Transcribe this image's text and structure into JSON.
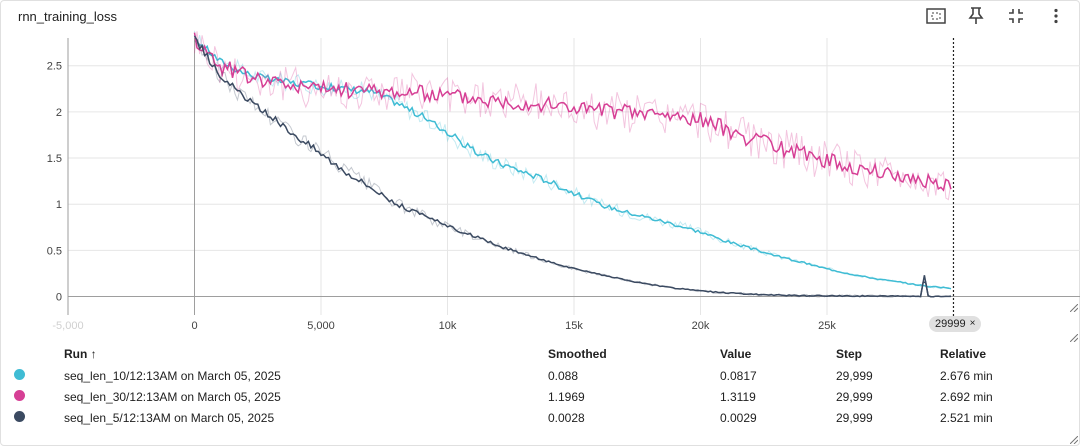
{
  "card": {
    "title": "rnn_training_loss"
  },
  "toolbar": {
    "icons": [
      "fit-domain-icon",
      "pin-icon",
      "fullscreen-exit-icon",
      "more-vert-icon"
    ]
  },
  "step_badge": {
    "label": "29999",
    "close": "×"
  },
  "table": {
    "headers": {
      "run": "Run ↑",
      "smoothed": "Smoothed",
      "value": "Value",
      "step": "Step",
      "relative": "Relative"
    },
    "rows": [
      {
        "color": "#3fbcd4",
        "run": "seq_len_10/12:13AM on March 05, 2025",
        "smoothed": "0.088",
        "value": "0.0817",
        "step": "29,999",
        "relative": "2.676 min"
      },
      {
        "color": "#d63f95",
        "run": "seq_len_30/12:13AM on March 05, 2025",
        "smoothed": "1.1969",
        "value": "1.3119",
        "step": "29,999",
        "relative": "2.692 min"
      },
      {
        "color": "#3b4a61",
        "run": "seq_len_5/12:13AM on March 05, 2025",
        "smoothed": "0.0028",
        "value": "0.0029",
        "step": "29,999",
        "relative": "2.521 min"
      }
    ]
  },
  "chart_data": {
    "type": "line",
    "title": "rnn_training_loss",
    "xlabel": "",
    "ylabel": "",
    "xlim": [
      -5000,
      35000
    ],
    "ylim": [
      -0.2,
      2.8
    ],
    "x_ticks": [
      {
        "value": -5000,
        "label": "-5,000",
        "faded": true
      },
      {
        "value": 0,
        "label": "0"
      },
      {
        "value": 5000,
        "label": "5,000"
      },
      {
        "value": 10000,
        "label": "10k"
      },
      {
        "value": 15000,
        "label": "15k"
      },
      {
        "value": 20000,
        "label": "20k"
      },
      {
        "value": 25000,
        "label": "25k"
      }
    ],
    "y_ticks": [
      {
        "value": 0,
        "label": "0"
      },
      {
        "value": 0.5,
        "label": "0.5"
      },
      {
        "value": 1,
        "label": "1"
      },
      {
        "value": 1.5,
        "label": "1.5"
      },
      {
        "value": 2,
        "label": "2"
      },
      {
        "value": 2.5,
        "label": "2.5"
      }
    ],
    "grid": true,
    "cursor_step": 29999,
    "series": [
      {
        "name": "seq_len_10/12:13AM on March 05, 2025",
        "color": "#3fbcd4",
        "x": [
          0,
          1000,
          2000,
          3000,
          4000,
          5000,
          6000,
          7000,
          8000,
          9000,
          10000,
          11000,
          12000,
          13000,
          14000,
          15000,
          16000,
          17000,
          18000,
          19000,
          20000,
          21000,
          22000,
          23000,
          24000,
          25000,
          26000,
          27000,
          28000,
          29000,
          29999
        ],
        "y": [
          2.8,
          2.55,
          2.42,
          2.35,
          2.31,
          2.28,
          2.25,
          2.22,
          2.1,
          1.95,
          1.78,
          1.58,
          1.45,
          1.35,
          1.25,
          1.12,
          1.0,
          0.92,
          0.85,
          0.78,
          0.7,
          0.6,
          0.52,
          0.44,
          0.37,
          0.3,
          0.24,
          0.19,
          0.15,
          0.11,
          0.088
        ]
      },
      {
        "name": "seq_len_30/12:13AM on March 05, 2025",
        "color": "#d63f95",
        "x": [
          0,
          1000,
          2000,
          3000,
          4000,
          5000,
          6000,
          7000,
          8000,
          9000,
          10000,
          11000,
          12000,
          13000,
          14000,
          15000,
          16000,
          17000,
          18000,
          19000,
          20000,
          21000,
          22000,
          23000,
          24000,
          25000,
          26000,
          27000,
          28000,
          29000,
          29999
        ],
        "y": [
          2.8,
          2.5,
          2.4,
          2.33,
          2.28,
          2.25,
          2.24,
          2.23,
          2.22,
          2.2,
          2.18,
          2.15,
          2.12,
          2.1,
          2.08,
          2.05,
          2.02,
          2.0,
          1.98,
          1.95,
          1.92,
          1.82,
          1.7,
          1.62,
          1.55,
          1.48,
          1.4,
          1.35,
          1.3,
          1.25,
          1.1969
        ]
      },
      {
        "name": "seq_len_5/12:13AM on March 05, 2025",
        "color": "#3b4a61",
        "x": [
          0,
          1000,
          2000,
          3000,
          4000,
          5000,
          6000,
          7000,
          8000,
          9000,
          10000,
          11000,
          12000,
          13000,
          14000,
          15000,
          16000,
          17000,
          18000,
          19000,
          20000,
          21000,
          22000,
          23000,
          24000,
          25000,
          26000,
          27000,
          28000,
          28700,
          28850,
          29000,
          29999
        ],
        "y": [
          2.8,
          2.4,
          2.15,
          1.95,
          1.75,
          1.55,
          1.35,
          1.18,
          1.0,
          0.88,
          0.76,
          0.66,
          0.55,
          0.46,
          0.38,
          0.3,
          0.24,
          0.18,
          0.13,
          0.09,
          0.06,
          0.04,
          0.025,
          0.015,
          0.01,
          0.008,
          0.006,
          0.005,
          0.004,
          0.004,
          0.23,
          0.004,
          0.0028
        ]
      }
    ]
  }
}
